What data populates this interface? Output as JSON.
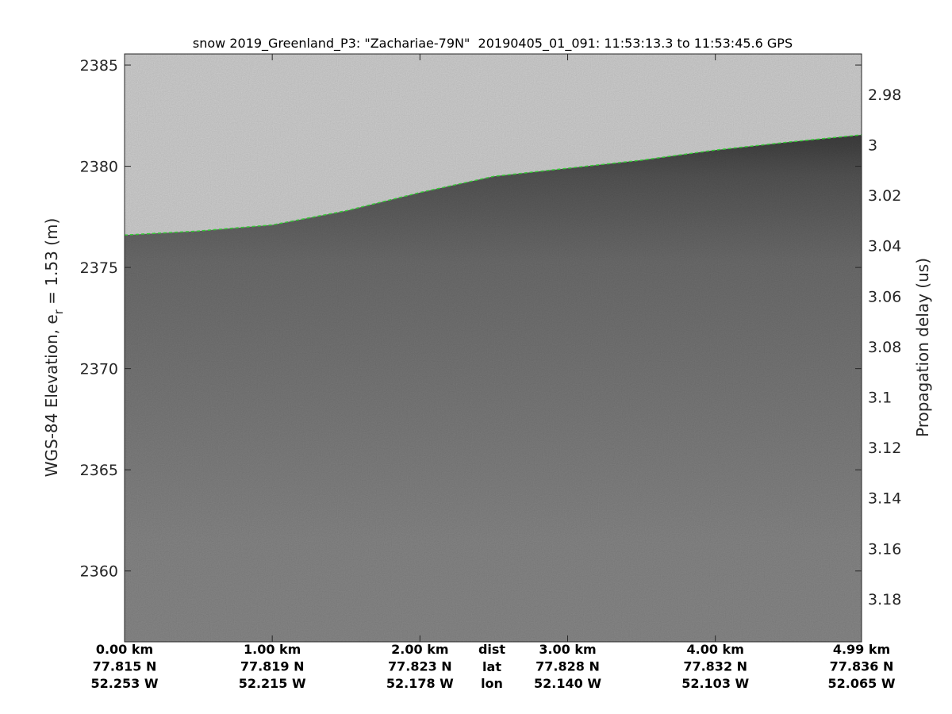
{
  "chart_data": {
    "type": "heatmap",
    "title": "snow 2019_Greenland_P3: \"Zachariae-79N\"  20190405_01_091: 11:53:13.3 to 11:53:45.6 GPS",
    "ylabel_left": "WGS-84 Elevation, e",
    "ylabel_left_sub": "r",
    "ylabel_left_suffix": " = 1.53 (m)",
    "ylabel_right": "Propagation delay (us)",
    "ylim_left": [
      2356.5,
      2385.55
    ],
    "ylim_right": [
      2.964,
      3.197
    ],
    "xlim_km": [
      0,
      4.99
    ],
    "left_ticks": [
      2360,
      2365,
      2370,
      2375,
      2380,
      2385
    ],
    "right_ticks": [
      "2.98",
      "3",
      "3.02",
      "3.04",
      "3.06",
      "3.08",
      "3.1",
      "3.12",
      "3.14",
      "3.16",
      "3.18"
    ],
    "x_ticks": [
      {
        "dist": "0.00 km",
        "lat": "77.815 N",
        "lon": "52.253 W",
        "km": 0
      },
      {
        "dist": "1.00 km",
        "lat": "77.819 N",
        "lon": "52.215 W",
        "km": 1
      },
      {
        "dist": "2.00 km",
        "lat": "77.823 N",
        "lon": "52.178 W",
        "km": 2
      },
      {
        "dist": "3.00 km",
        "lat": "77.828 N",
        "lon": "52.140 W",
        "km": 3
      },
      {
        "dist": "4.00 km",
        "lat": "77.832 N",
        "lon": "52.103 W",
        "km": 4
      },
      {
        "dist": "4.99 km",
        "lat": "77.836 N",
        "lon": "52.065 W",
        "km": 4.99
      }
    ],
    "row_labels": {
      "dist": "dist",
      "lat": "lat",
      "lon": "lon"
    },
    "surface_layer": {
      "color": "#33cc33",
      "km": [
        0,
        0.5,
        1.0,
        1.5,
        2.0,
        2.5,
        3.0,
        3.5,
        4.0,
        4.5,
        4.99
      ],
      "elevation_m": [
        2376.6,
        2376.8,
        2377.1,
        2377.8,
        2378.7,
        2379.5,
        2379.9,
        2380.3,
        2380.8,
        2381.2,
        2381.55
      ]
    },
    "grid": false,
    "colormap": "gray"
  }
}
